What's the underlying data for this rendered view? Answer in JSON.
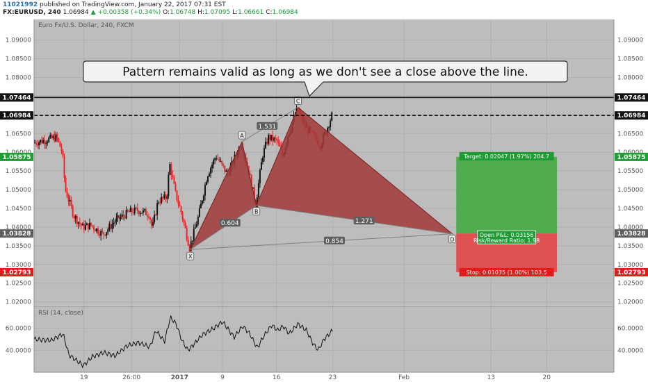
{
  "header": {
    "user": "11021992",
    "published": "published on TradingView.com, January 22, 2017 07:31 EST",
    "symbol": "FX:EURUSD, 240",
    "last": "1.06984",
    "change": "+0.00358 (+0.34%)",
    "o_label": "O:",
    "o": "1.06748",
    "h_label": "H:",
    "h": "1.07095",
    "l_label": "L:",
    "l": "1.06661",
    "c_label": "C:",
    "c": "1.06984"
  },
  "chart_data": {
    "type": "candlestick",
    "title": "Euro Fx/U.S. Dollar, 240, FXCM",
    "ylim": [
      1.019,
      1.0955
    ],
    "y_ticks": [
      "1.09000",
      "1.08500",
      "1.08000",
      "1.07500",
      "1.07000",
      "1.06500",
      "1.06000",
      "1.05500",
      "1.05000",
      "1.04500",
      "1.04000",
      "1.03500",
      "1.03000",
      "1.02500",
      "1.02000"
    ],
    "x_ticks": [
      "19",
      "26:00",
      "2017",
      "9",
      "16",
      "23",
      "Feb",
      "13",
      "20"
    ],
    "price_tags": [
      {
        "label": "1.07464",
        "style": "dark"
      },
      {
        "label": "1.06984",
        "style": "dark"
      },
      {
        "label": "1.05875",
        "style": "green"
      },
      {
        "label": "1.03828",
        "style": "gray"
      },
      {
        "label": "1.02793",
        "style": "red"
      }
    ],
    "pattern_points": [
      {
        "label": "X",
        "t": 0.2695,
        "price": 1.034
      },
      {
        "label": "A",
        "t": 0.3585,
        "price": 1.0628
      },
      {
        "label": "B",
        "t": 0.3834,
        "price": 1.0458
      },
      {
        "label": "C",
        "t": 0.4552,
        "price": 1.072
      },
      {
        "label": "D",
        "t": 0.7212,
        "price": 1.0382
      }
    ],
    "ratios": [
      "0.604",
      "1.531",
      "1.271",
      "0.854"
    ],
    "annotation": "Pattern remains valid as long as we don't see a close above the line.",
    "target_label": "Target: 0.02047 (1.97%) 204.7",
    "stop_label": "Stop: 0.01035 (1.00%) 103.5",
    "pnl_label": "Open P&L: 0.03156",
    "rr_label": "Risk/Reward Ratio: 1.98",
    "resistance": 1.07464,
    "current": 1.06984,
    "target": 1.05875,
    "entry": 1.03828,
    "stop": 1.02793,
    "rsi": {
      "title": "RSI (14, close)",
      "ylim": [
        20,
        80
      ],
      "y_ticks": [
        "60.0000",
        "40.0000"
      ]
    }
  },
  "colors": {
    "bg": "#bdbdbd",
    "up": "#141414",
    "down": "#e2292c",
    "pattern": "#a13a3a",
    "target": "#4fad4f",
    "stop": "#e05252",
    "tag_dark": "#111111",
    "tag_green": "#1e9e34",
    "tag_red": "#e11b1b",
    "tag_gray": "#5d5d5d"
  }
}
